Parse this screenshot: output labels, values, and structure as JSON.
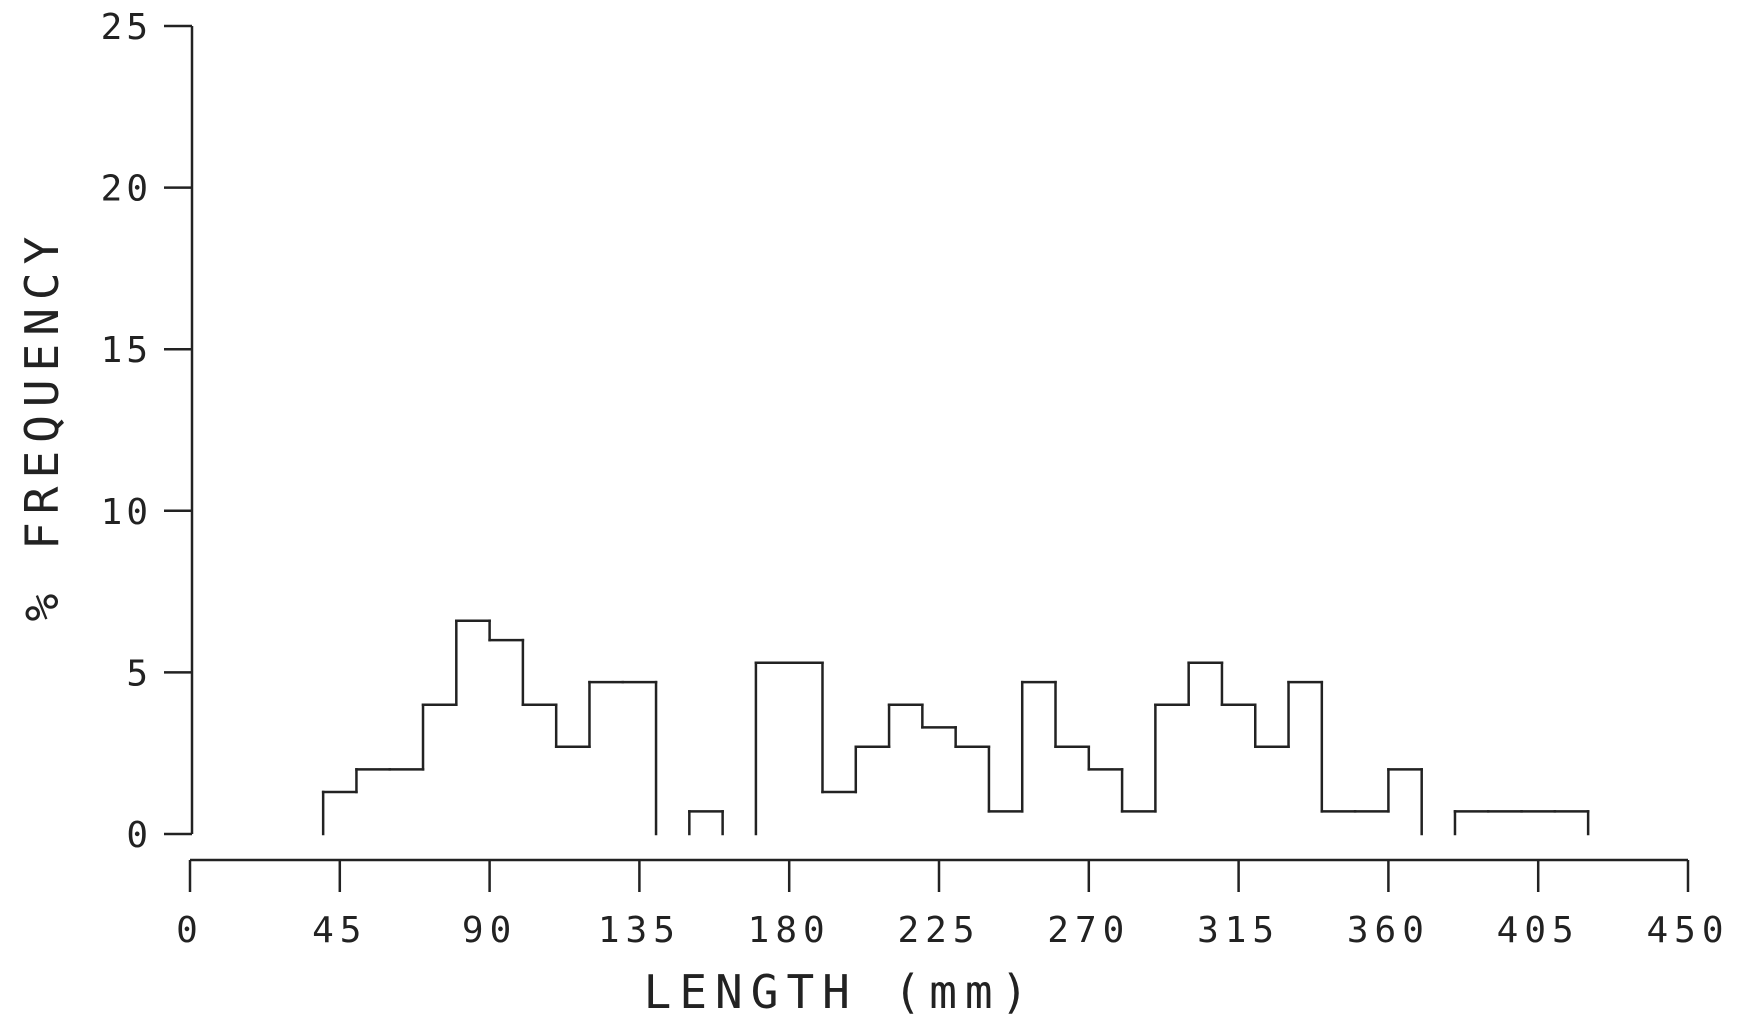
{
  "chart_data": {
    "type": "bar",
    "title": "",
    "xlabel": "LENGTH (mm)",
    "ylabel": "% FREQUENCY",
    "xlim": [
      0,
      450
    ],
    "ylim": [
      0,
      25
    ],
    "grid": false,
    "x_ticks": [
      0,
      45,
      90,
      135,
      180,
      225,
      270,
      315,
      360,
      405,
      450
    ],
    "y_ticks": [
      0,
      5,
      10,
      15,
      20,
      25
    ],
    "x_tick_labels": [
      "0",
      "45",
      "90",
      "135",
      "180",
      "225",
      "270",
      "315",
      "360",
      "405",
      "450"
    ],
    "y_tick_labels": [
      "0",
      "5",
      "10",
      "15",
      "20",
      "25"
    ],
    "bin_width": 10,
    "bins": [
      {
        "start": 40,
        "value": 1.3
      },
      {
        "start": 50,
        "value": 2.0
      },
      {
        "start": 60,
        "value": 2.0
      },
      {
        "start": 70,
        "value": 4.0
      },
      {
        "start": 80,
        "value": 6.6
      },
      {
        "start": 90,
        "value": 6.0
      },
      {
        "start": 100,
        "value": 4.0
      },
      {
        "start": 110,
        "value": 2.7
      },
      {
        "start": 120,
        "value": 4.7
      },
      {
        "start": 130,
        "value": 4.7
      },
      {
        "start": 140,
        "value": 0
      },
      {
        "start": 150,
        "value": 0.7
      },
      {
        "start": 160,
        "value": 0
      },
      {
        "start": 170,
        "value": 5.3
      },
      {
        "start": 180,
        "value": 5.3
      },
      {
        "start": 190,
        "value": 1.3
      },
      {
        "start": 200,
        "value": 2.7
      },
      {
        "start": 210,
        "value": 4.0
      },
      {
        "start": 220,
        "value": 3.3
      },
      {
        "start": 230,
        "value": 2.7
      },
      {
        "start": 240,
        "value": 0.7
      },
      {
        "start": 250,
        "value": 4.7
      },
      {
        "start": 260,
        "value": 2.7
      },
      {
        "start": 270,
        "value": 2.0
      },
      {
        "start": 280,
        "value": 0.7
      },
      {
        "start": 290,
        "value": 4.0
      },
      {
        "start": 300,
        "value": 5.3
      },
      {
        "start": 310,
        "value": 4.0
      },
      {
        "start": 320,
        "value": 2.7
      },
      {
        "start": 330,
        "value": 4.7
      },
      {
        "start": 340,
        "value": 0.7
      },
      {
        "start": 350,
        "value": 0.7
      },
      {
        "start": 360,
        "value": 2.0
      },
      {
        "start": 370,
        "value": 0
      },
      {
        "start": 380,
        "value": 0.7
      },
      {
        "start": 390,
        "value": 0.7
      },
      {
        "start": 400,
        "value": 0.7
      },
      {
        "start": 410,
        "value": 0.7
      }
    ]
  },
  "colors": {
    "ink": "#222222",
    "background": "#ffffff"
  }
}
